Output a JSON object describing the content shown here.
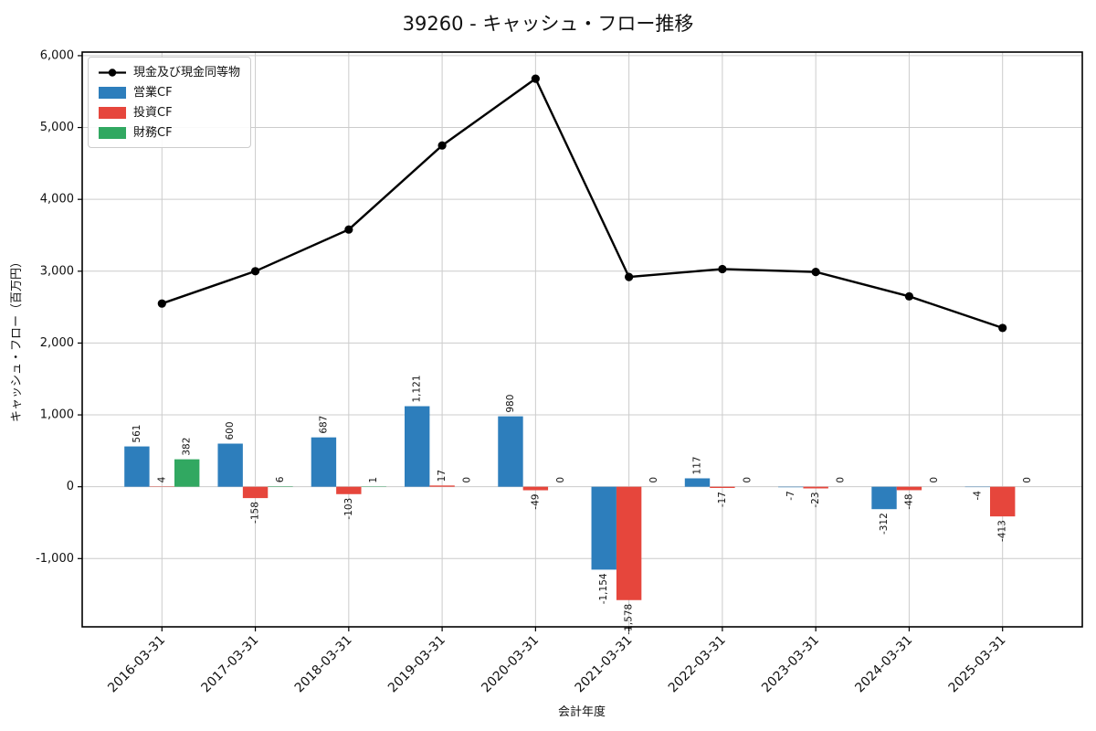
{
  "chart_data": {
    "type": "bar+line",
    "title": "39260 - キャッシュ・フロー推移",
    "xlabel": "会計年度",
    "ylabel": "キャッシュ・フロー（百万円）",
    "categories": [
      "2016-03-31",
      "2017-03-31",
      "2018-03-31",
      "2019-03-31",
      "2020-03-31",
      "2021-03-31",
      "2022-03-31",
      "2023-03-31",
      "2024-03-31",
      "2025-03-31"
    ],
    "series": [
      {
        "name": "現金及び現金同等物",
        "type": "line",
        "color": "#000000",
        "values": [
          2550,
          3000,
          3580,
          4750,
          5680,
          2920,
          3030,
          2990,
          2650,
          2210
        ]
      },
      {
        "name": "営業CF",
        "type": "bar",
        "color": "#2d7ebc",
        "values": [
          561,
          600,
          687,
          1121,
          980,
          -1154,
          117,
          -7,
          -312,
          -4
        ]
      },
      {
        "name": "投資CF",
        "type": "bar",
        "color": "#e6463c",
        "values": [
          4,
          -158,
          -103,
          17,
          -49,
          -1578,
          -17,
          -23,
          -48,
          -413
        ]
      },
      {
        "name": "財務CF",
        "type": "bar",
        "color": "#31a861",
        "values": [
          382,
          6,
          1,
          0,
          0,
          0,
          0,
          0,
          0,
          0
        ]
      }
    ],
    "yticks": [
      -1000,
      0,
      1000,
      2000,
      3000,
      4000,
      5000,
      6000
    ],
    "ylim": [
      -1950,
      6050
    ],
    "grid": true,
    "grid_color": "#cccccc",
    "text_color": "#111111",
    "legend_position": "upper left"
  }
}
